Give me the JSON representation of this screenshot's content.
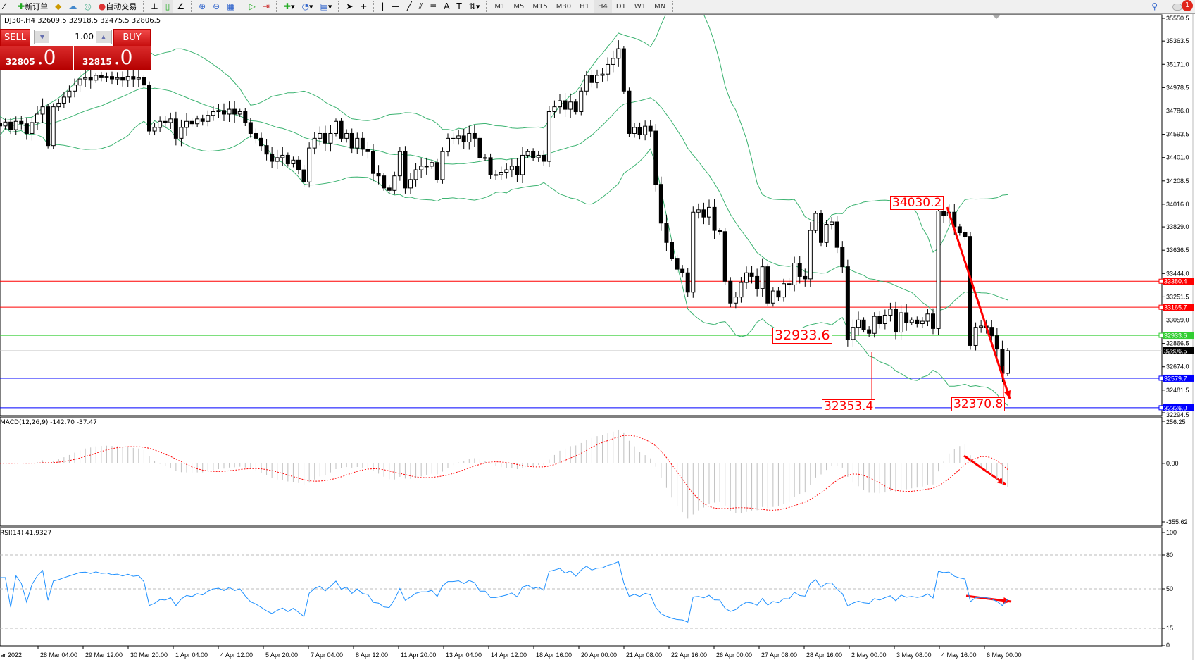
{
  "toolbar": {
    "new_order_label": "新订单",
    "auto_trading_label": "自动交易",
    "timeframes": [
      "M1",
      "M5",
      "M15",
      "M30",
      "H1",
      "H4",
      "D1",
      "W1",
      "MN"
    ],
    "active_timeframe": "H4",
    "notification_count": "1"
  },
  "chart": {
    "title": "DJ30-,H4  32609.5 32918.5 32475.5 32806.5",
    "price_ticks": [
      "35550.5",
      "35363.5",
      "35171.0",
      "34978.5",
      "34786.0",
      "34593.5",
      "34401.0",
      "34208.5",
      "34016.0",
      "33829.0",
      "33636.5",
      "33444.0",
      "33251.5",
      "33059.0",
      "32866.5",
      "32674.0",
      "32481.5",
      "32294.5"
    ],
    "time_labels": [
      "Mar 2022",
      "28 Mar 04:00",
      "29 Mar 12:00",
      "30 Mar 20:00",
      "1 Apr 04:00",
      "4 Apr 12:00",
      "5 Apr 20:00",
      "7 Apr 04:00",
      "8 Apr 12:00",
      "11 Apr 20:00",
      "13 Apr 04:00",
      "14 Apr 12:00",
      "18 Apr 16:00",
      "20 Apr 00:00",
      "21 Apr 08:00",
      "22 Apr 16:00",
      "26 Apr 00:00",
      "27 Apr 08:00",
      "28 Apr 16:00",
      "2 May 00:00",
      "3 May 08:00",
      "4 May 16:00",
      "6 May 00:00"
    ],
    "closes": [
      34662,
      34694,
      34631,
      34700,
      34680,
      34600,
      34690,
      34760,
      34820,
      34500,
      34820,
      34850,
      34900,
      34950,
      35000,
      35050,
      35060,
      35040,
      35080,
      35060,
      35070,
      35050,
      35060,
      35040,
      35070,
      35050,
      35060,
      35000,
      34620,
      34650,
      34700,
      34690,
      34720,
      34560,
      34650,
      34700,
      34680,
      34720,
      34700,
      34750,
      34780,
      34790,
      34760,
      34800,
      34760,
      34780,
      34690,
      34600,
      34560,
      34500,
      34430,
      34370,
      34400,
      34420,
      34350,
      34380,
      34300,
      34200,
      34480,
      34560,
      34600,
      34520,
      34600,
      34700,
      34560,
      34600,
      34480,
      34560,
      34470,
      34450,
      34270,
      34250,
      34150,
      34130,
      34250,
      34450,
      34150,
      34220,
      34300,
      34330,
      34330,
      34360,
      34220,
      34450,
      34560,
      34560,
      34580,
      34530,
      34600,
      34560,
      34400,
      34400,
      34260,
      34260,
      34280,
      34300,
      34330,
      34260,
      34420,
      34450,
      34400,
      34420,
      34370,
      34780,
      34820,
      34870,
      34800,
      34860,
      34780,
      34950,
      35080,
      35020,
      35080,
      35090,
      35170,
      35220,
      35300,
      34950,
      34600,
      34650,
      34590,
      34660,
      34620,
      34180,
      33860,
      33700,
      33570,
      33480,
      33450,
      33290,
      33950,
      33970,
      33910,
      33990,
      33800,
      33790,
      33380,
      33200,
      33250,
      33370,
      33450,
      33420,
      33320,
      33500,
      33200,
      33300,
      33250,
      33360,
      33350,
      33530,
      33420,
      33400,
      33800,
      33940,
      33700,
      33850,
      33870,
      33660,
      33500,
      32900,
      33000,
      33060,
      32980,
      32950,
      33090,
      33030,
      33100,
      33150,
      32960,
      33120,
      33040,
      33060,
      33030,
      33050,
      33110,
      32990,
      33960,
      33920,
      33950,
      33830,
      33780,
      33750,
      32850,
      33000,
      33010,
      33000,
      32930,
      32820,
      32620,
      32806.5
    ],
    "price_range": [
      32294.5,
      35550.5
    ],
    "bollinger": {
      "period": 20,
      "deviation": 2,
      "color": "#3cb371"
    },
    "horizontal_lines": [
      {
        "price": "33380.4",
        "color": "#ff0000",
        "text_color": "#ffffff"
      },
      {
        "price": "33165.7",
        "color": "#ff0000",
        "text_color": "#ffffff"
      },
      {
        "price": "32933.6",
        "color": "#32cd32",
        "text_color": "#ffffff"
      },
      {
        "price": "32806.5",
        "color": "#c0c0c0",
        "label_bg": "#000000",
        "text_color": "#ffffff"
      },
      {
        "price": "32579.7",
        "color": "#0000ff",
        "text_color": "#ffffff"
      },
      {
        "price": "32336.0",
        "color": "#0000ff",
        "text_color": "#ffffff"
      }
    ],
    "annotations": {
      "high_label": "34030.2",
      "level_label": "32933.6",
      "low_label_1": "32353.4",
      "low_label_2": "32370.8"
    },
    "arrow_color": "#ff0000"
  },
  "trade_panel": {
    "sell_label": "SELL",
    "buy_label": "BUY",
    "lot_size": "1.00",
    "sell_price_main": "32805",
    "sell_price_big": ".0",
    "buy_price_main": "32815",
    "buy_price_big": ".0"
  },
  "macd": {
    "title": "MACD(12,26,9) -142.70 -37.47",
    "ticks": [
      "256.25",
      "0.00",
      "-355.62"
    ],
    "range": [
      -355.62,
      256.25
    ],
    "histogram_color": "#c0c0c0",
    "signal_color": "#ff0000"
  },
  "rsi": {
    "title": "RSI(14) 41.9327",
    "ticks": [
      "100",
      "80",
      "50",
      "15",
      "0"
    ],
    "levels": [
      80,
      50,
      15
    ],
    "line_color": "#1e90ff"
  }
}
